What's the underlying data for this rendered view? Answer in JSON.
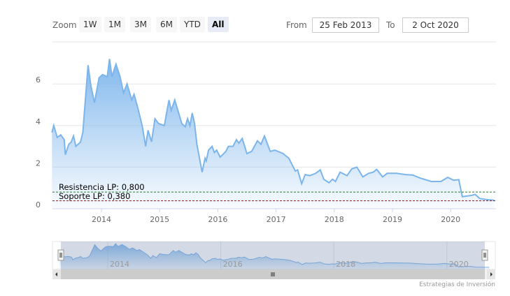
{
  "range_selector": {
    "zoom_label": "Zoom",
    "buttons": [
      {
        "label": "1W",
        "selected": false
      },
      {
        "label": "1M",
        "selected": false
      },
      {
        "label": "3M",
        "selected": false
      },
      {
        "label": "6M",
        "selected": false
      },
      {
        "label": "YTD",
        "selected": false
      },
      {
        "label": "All",
        "selected": true
      }
    ],
    "from_label": "From",
    "from_value": "25 Feb 2013",
    "to_label": "To",
    "to_value": "2 Oct 2020"
  },
  "credits": "Estrategias de Inversión",
  "chart_data": {
    "type": "area",
    "title": "",
    "xlabel": "",
    "ylabel": "",
    "xlim": [
      2013.15,
      2020.75
    ],
    "ylim": [
      0,
      7.5
    ],
    "x_ticks": [
      "2014",
      "2015",
      "2016",
      "2017",
      "2018",
      "2019",
      "2020"
    ],
    "y_ticks": [
      "0",
      "2",
      "4",
      "6"
    ],
    "navigator_ticks": [
      "2014",
      "2016",
      "2018",
      "2020"
    ],
    "grid": true,
    "line_color": "#7cb5ec",
    "series": [
      {
        "points": [
          [
            2013.15,
            3.66
          ],
          [
            2013.18,
            4.0
          ],
          [
            2013.24,
            3.43
          ],
          [
            2013.3,
            3.55
          ],
          [
            2013.36,
            3.32
          ],
          [
            2013.38,
            2.6
          ],
          [
            2013.44,
            3.1
          ],
          [
            2013.48,
            3.2
          ],
          [
            2013.52,
            3.5
          ],
          [
            2013.56,
            3.0
          ],
          [
            2013.64,
            3.2
          ],
          [
            2013.68,
            3.66
          ],
          [
            2013.72,
            5.1
          ],
          [
            2013.77,
            6.9
          ],
          [
            2013.82,
            5.9
          ],
          [
            2013.88,
            5.1
          ],
          [
            2013.96,
            6.3
          ],
          [
            2014.02,
            6.45
          ],
          [
            2014.1,
            6.35
          ],
          [
            2014.14,
            7.2
          ],
          [
            2014.18,
            6.35
          ],
          [
            2014.25,
            6.95
          ],
          [
            2014.32,
            6.35
          ],
          [
            2014.38,
            5.57
          ],
          [
            2014.44,
            6.0
          ],
          [
            2014.52,
            5.23
          ],
          [
            2014.56,
            5.5
          ],
          [
            2014.62,
            4.9
          ],
          [
            2014.7,
            4.0
          ],
          [
            2014.76,
            3.0
          ],
          [
            2014.8,
            3.77
          ],
          [
            2014.86,
            3.22
          ],
          [
            2014.92,
            4.33
          ],
          [
            2014.98,
            4.1
          ],
          [
            2015.08,
            4.0
          ],
          [
            2015.16,
            5.22
          ],
          [
            2015.2,
            4.73
          ],
          [
            2015.26,
            5.23
          ],
          [
            2015.38,
            4.1
          ],
          [
            2015.44,
            3.94
          ],
          [
            2015.48,
            4.33
          ],
          [
            2015.52,
            4.0
          ],
          [
            2015.56,
            4.6
          ],
          [
            2015.6,
            4.1
          ],
          [
            2015.64,
            3.1
          ],
          [
            2015.73,
            1.76
          ],
          [
            2015.78,
            2.43
          ],
          [
            2015.8,
            2.3
          ],
          [
            2015.84,
            2.82
          ],
          [
            2015.9,
            3.0
          ],
          [
            2015.94,
            2.7
          ],
          [
            2015.98,
            2.82
          ],
          [
            2016.04,
            2.48
          ],
          [
            2016.14,
            2.76
          ],
          [
            2016.18,
            3.0
          ],
          [
            2016.26,
            3.0
          ],
          [
            2016.32,
            3.32
          ],
          [
            2016.36,
            3.15
          ],
          [
            2016.42,
            3.38
          ],
          [
            2016.5,
            2.65
          ],
          [
            2016.58,
            2.76
          ],
          [
            2016.68,
            3.27
          ],
          [
            2016.74,
            3.1
          ],
          [
            2016.8,
            3.5
          ],
          [
            2016.9,
            2.76
          ],
          [
            2016.98,
            2.82
          ],
          [
            2017.12,
            2.65
          ],
          [
            2017.22,
            2.43
          ],
          [
            2017.33,
            1.81
          ],
          [
            2017.37,
            1.87
          ],
          [
            2017.44,
            1.2
          ],
          [
            2017.5,
            1.64
          ],
          [
            2017.58,
            1.59
          ],
          [
            2017.68,
            1.7
          ],
          [
            2017.76,
            1.87
          ],
          [
            2017.82,
            1.42
          ],
          [
            2017.91,
            1.25
          ],
          [
            2017.97,
            1.42
          ],
          [
            2018.02,
            1.31
          ],
          [
            2018.1,
            1.76
          ],
          [
            2018.22,
            1.59
          ],
          [
            2018.3,
            1.92
          ],
          [
            2018.39,
            2.0
          ],
          [
            2018.49,
            1.53
          ],
          [
            2018.59,
            1.7
          ],
          [
            2018.67,
            1.76
          ],
          [
            2018.73,
            1.89
          ],
          [
            2018.83,
            1.53
          ],
          [
            2018.91,
            1.7
          ],
          [
            2019.07,
            1.7
          ],
          [
            2019.23,
            1.64
          ],
          [
            2019.35,
            1.62
          ],
          [
            2019.47,
            1.48
          ],
          [
            2019.67,
            1.31
          ],
          [
            2019.83,
            1.31
          ],
          [
            2019.95,
            1.51
          ],
          [
            2020.05,
            1.37
          ],
          [
            2020.14,
            1.4
          ],
          [
            2020.2,
            0.58
          ],
          [
            2020.36,
            0.64
          ],
          [
            2020.42,
            0.69
          ],
          [
            2020.5,
            0.49
          ],
          [
            2020.61,
            0.44
          ],
          [
            2020.75,
            0.41
          ]
        ]
      }
    ],
    "plot_lines": [
      {
        "label": "Resistencia LP: 0,800",
        "value": 0.8,
        "color": "#2a7a2a",
        "style": "dashed"
      },
      {
        "label": "Soporte LP: 0,380",
        "value": 0.38,
        "color": "#8b1a1a",
        "style": "dashed"
      }
    ]
  }
}
